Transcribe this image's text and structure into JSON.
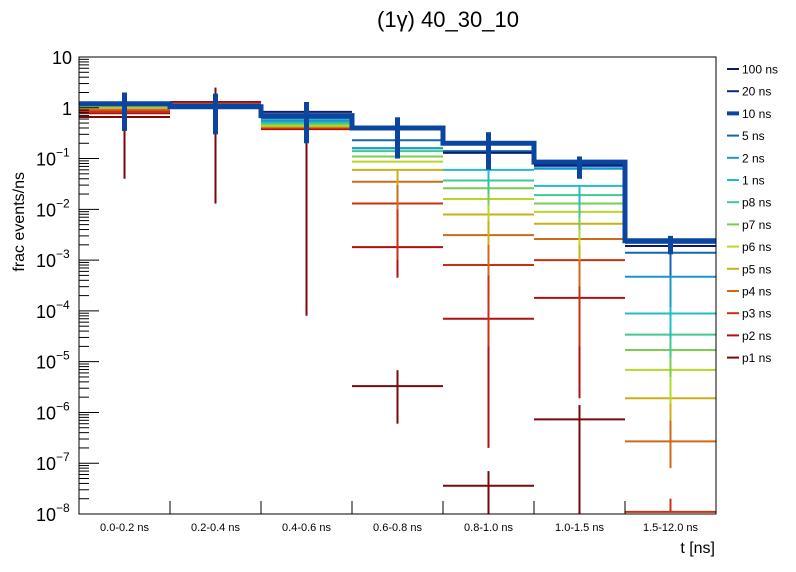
{
  "chart_data": {
    "type": "line",
    "subtype": "step-histogram-with-error-bars",
    "title": "(1γ) 40_30_10",
    "xlabel": "t [ns]",
    "ylabel": "frac events/ns",
    "yscale": "log",
    "ylim": [
      1e-08,
      10
    ],
    "grid": false,
    "legend_position": "right",
    "categories": [
      "0.0-0.2 ns",
      "0.2-0.4 ns",
      "0.4-0.6 ns",
      "0.6-0.8 ns",
      "0.8-1.0 ns",
      "1.0-1.5 ns",
      "1.5-12.0 ns"
    ],
    "y_tick_labels": [
      {
        "base": "10",
        "exp": ""
      },
      {
        "base": "1",
        "exp": ""
      },
      {
        "base": "10",
        "exp": "−1"
      },
      {
        "base": "10",
        "exp": "−2"
      },
      {
        "base": "10",
        "exp": "−3"
      },
      {
        "base": "10",
        "exp": "−4"
      },
      {
        "base": "10",
        "exp": "−5"
      },
      {
        "base": "10",
        "exp": "−6"
      },
      {
        "base": "10",
        "exp": "−7"
      },
      {
        "base": "10",
        "exp": "−8"
      }
    ],
    "series": [
      {
        "name": "100 ns",
        "color": "#0b1a6b",
        "values": [
          1.15,
          1.12,
          0.83,
          0.4,
          0.13,
          0.075,
          0.0019
        ],
        "err_lo": [
          null,
          null,
          null,
          null,
          null,
          null,
          null
        ],
        "err_hi": [
          null,
          null,
          null,
          null,
          null,
          null,
          null
        ]
      },
      {
        "name": "20 ns",
        "color": "#0a2a80",
        "values": [
          1.18,
          1.1,
          0.73,
          0.4,
          0.2,
          0.082,
          0.0022
        ],
        "err_lo": [
          null,
          null,
          null,
          null,
          null,
          null,
          null
        ],
        "err_hi": [
          null,
          null,
          null,
          null,
          null,
          null,
          null
        ]
      },
      {
        "name": "10 ns",
        "color": "#0a45a0",
        "thick": true,
        "values": [
          1.2,
          1.05,
          0.7,
          0.4,
          0.2,
          0.085,
          0.0024
        ],
        "err_lo": [
          0.35,
          0.3,
          0.2,
          0.1,
          0.06,
          0.04,
          0.0013
        ],
        "err_hi": [
          2.0,
          1.9,
          1.3,
          0.65,
          0.33,
          0.11,
          0.003
        ]
      },
      {
        "name": "5 ns",
        "color": "#1266b0",
        "values": [
          1.22,
          1.14,
          0.62,
          0.23,
          0.14,
          0.07,
          0.0014
        ],
        "err_lo": [
          null,
          null,
          null,
          null,
          null,
          null,
          0.0005
        ],
        "err_hi": [
          null,
          null,
          null,
          null,
          null,
          null,
          0.0022
        ]
      },
      {
        "name": "2 ns",
        "color": "#1b96c8",
        "values": [
          1.25,
          1.16,
          0.56,
          0.16,
          0.13,
          0.063,
          0.00047
        ],
        "err_lo": [
          null,
          null,
          null,
          null,
          null,
          null,
          0.00012
        ],
        "err_hi": [
          null,
          null,
          null,
          null,
          null,
          null,
          0.0009
        ]
      },
      {
        "name": "1 ns",
        "color": "#20bcc8",
        "values": [
          1.15,
          1.13,
          0.53,
          0.16,
          0.06,
          0.029,
          8.9e-05
        ],
        "err_lo": [
          null,
          null,
          null,
          null,
          0.03,
          0.012,
          3e-05
        ],
        "err_hi": [
          null,
          null,
          null,
          null,
          null,
          null,
          0.00019
        ]
      },
      {
        "name": "p8 ns",
        "color": "#40c890",
        "values": [
          1.1,
          1.1,
          0.5,
          0.14,
          0.037,
          0.019,
          3.4e-05
        ],
        "err_lo": [
          null,
          null,
          null,
          null,
          0.02,
          0.007,
          1.2e-05
        ],
        "err_hi": [
          null,
          null,
          null,
          null,
          null,
          null,
          8e-05
        ]
      },
      {
        "name": "p7 ns",
        "color": "#78cc50",
        "values": [
          1.08,
          1.08,
          0.48,
          0.11,
          0.026,
          0.013,
          1.7e-05
        ],
        "err_lo": [
          null,
          null,
          null,
          null,
          0.012,
          0.004,
          5e-06
        ],
        "err_hi": [
          null,
          null,
          null,
          null,
          null,
          null,
          4e-05
        ]
      },
      {
        "name": "p6 ns",
        "color": "#b4d828",
        "values": [
          1.06,
          1.06,
          0.45,
          0.087,
          0.016,
          0.0089,
          6.9e-06
        ],
        "err_lo": [
          null,
          null,
          null,
          null,
          0.006,
          0.002,
          1.5e-06
        ],
        "err_hi": [
          null,
          null,
          null,
          null,
          null,
          null,
          1.8e-05
        ]
      },
      {
        "name": "p5 ns",
        "color": "#c8b018",
        "values": [
          1.02,
          1.04,
          0.43,
          0.06,
          0.0079,
          0.0052,
          1.9e-06
        ],
        "err_lo": [
          null,
          null,
          null,
          0.03,
          0.002,
          0.001,
          7e-07
        ],
        "err_hi": [
          null,
          null,
          null,
          null,
          null,
          null,
          4e-06
        ]
      },
      {
        "name": "p4 ns",
        "color": "#d06818",
        "values": [
          0.92,
          1.02,
          0.42,
          0.035,
          0.0031,
          0.0026,
          2.7e-07
        ],
        "err_lo": [
          null,
          null,
          null,
          0.01,
          0.0005,
          0.0003,
          8e-08
        ],
        "err_hi": [
          null,
          null,
          null,
          null,
          null,
          null,
          7e-07
        ]
      },
      {
        "name": "p3 ns",
        "color": "#c83010",
        "values": [
          0.85,
          1.2,
          0.4,
          0.013,
          0.0008,
          0.001,
          1.1e-08
        ],
        "err_lo": [
          null,
          null,
          null,
          0.001,
          2e-05,
          2e-05,
          null
        ],
        "err_hi": [
          null,
          null,
          null,
          null,
          null,
          null,
          2e-08
        ]
      },
      {
        "name": "p2 ns",
        "color": "#b01010",
        "values": [
          0.78,
          1.28,
          0.38,
          0.0018,
          7e-05,
          0.00018,
          null
        ],
        "err_lo": [
          null,
          null,
          null,
          0.00045,
          2e-07,
          1.9e-06,
          null
        ],
        "err_hi": [
          null,
          null,
          null,
          null,
          0.00016,
          null,
          null
        ]
      },
      {
        "name": "p1 ns",
        "color": "#7a0a0a",
        "values": [
          0.66,
          1.3,
          0.39,
          3.3e-06,
          3.6e-08,
          7.3e-07,
          null
        ],
        "err_lo": [
          0.04,
          0.013,
          8e-05,
          6e-07,
          1e-08,
          1e-08,
          null
        ],
        "err_hi": [
          null,
          2.5,
          null,
          6.8e-06,
          7e-08,
          1.4e-06,
          null
        ]
      }
    ]
  }
}
